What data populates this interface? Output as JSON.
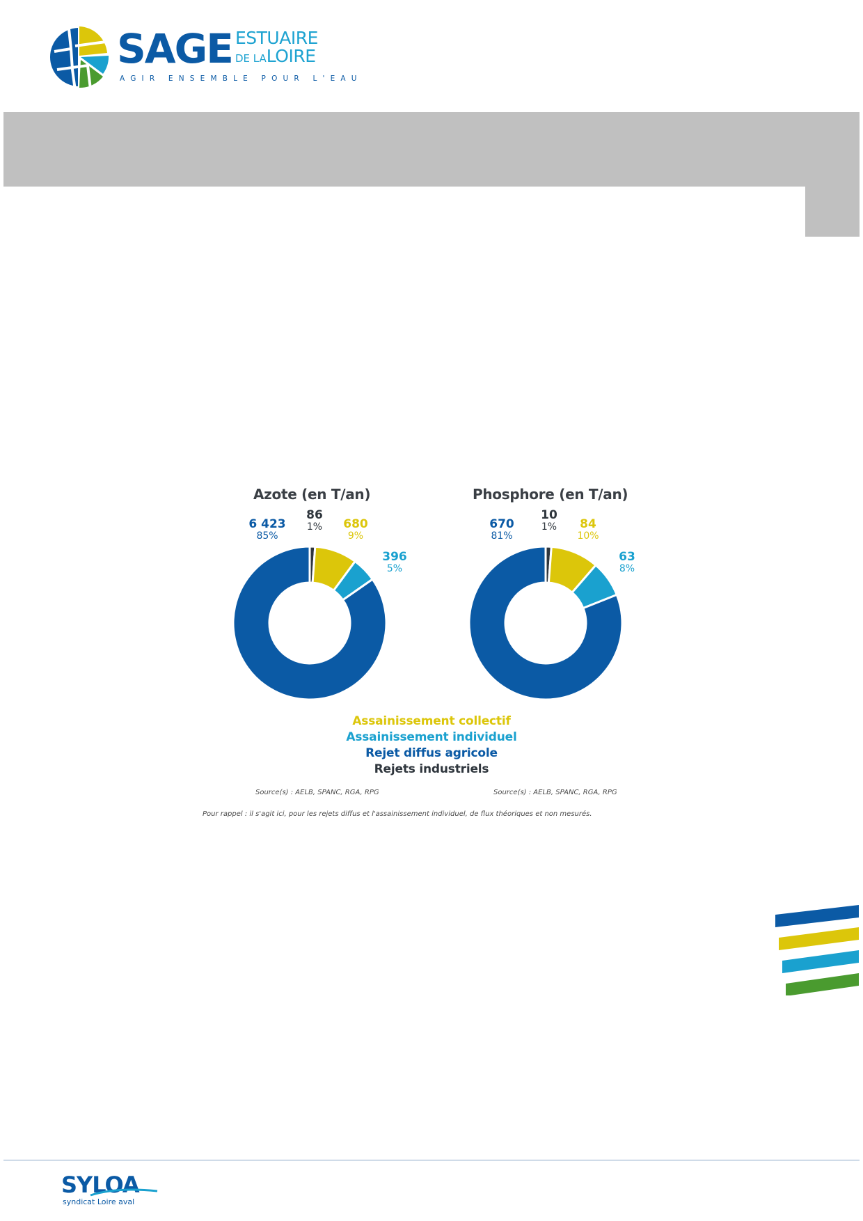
{
  "header": {
    "brand": "SAGE",
    "subtitle_line1": "ESTUAIRE",
    "subtitle_de": "DE LA",
    "subtitle_line2": "LOIRE",
    "tagline": "AGIR ENSEMBLE POUR L'EAU"
  },
  "colors": {
    "collectif": "#dcc60a",
    "individuel": "#1aa1cf",
    "agricole": "#0b5aa5",
    "industriels": "#2f363d",
    "gray_band": "#c0c0c0"
  },
  "chart_data": [
    {
      "type": "pie",
      "title": "Azote (en T/an)",
      "categories": [
        "Rejets industriels",
        "Assainissement collectif",
        "Assainissement individuel",
        "Rejet diffus agricole"
      ],
      "values": [
        86,
        680,
        396,
        6423
      ],
      "value_labels": [
        "86",
        "680",
        "396",
        "6 423"
      ],
      "percent_labels": [
        "1%",
        "9%",
        "5%",
        "85%"
      ],
      "source": "Source(s) : AELB, SPANC, RGA, RPG"
    },
    {
      "type": "pie",
      "title": "Phosphore (en T/an)",
      "categories": [
        "Rejets industriels",
        "Assainissement collectif",
        "Assainissement individuel",
        "Rejet diffus agricole"
      ],
      "values": [
        10,
        84,
        63,
        670
      ],
      "value_labels": [
        "10",
        "84",
        "63",
        "670"
      ],
      "percent_labels": [
        "1%",
        "10%",
        "8%",
        "81%"
      ],
      "source": "Source(s) : AELB, SPANC, RGA, RPG"
    }
  ],
  "legend": [
    "Assainissement collectif",
    "Assainissement individuel",
    "Rejet diffus agricole",
    "Rejets industriels"
  ],
  "note": "Pour rappel : il s'agit ici, pour les rejets diffus et l'assainissement individuel, de flux théoriques et non mesurés.",
  "footer": {
    "brand": "SYLOA",
    "subtitle": "syndicat Loire aval"
  }
}
